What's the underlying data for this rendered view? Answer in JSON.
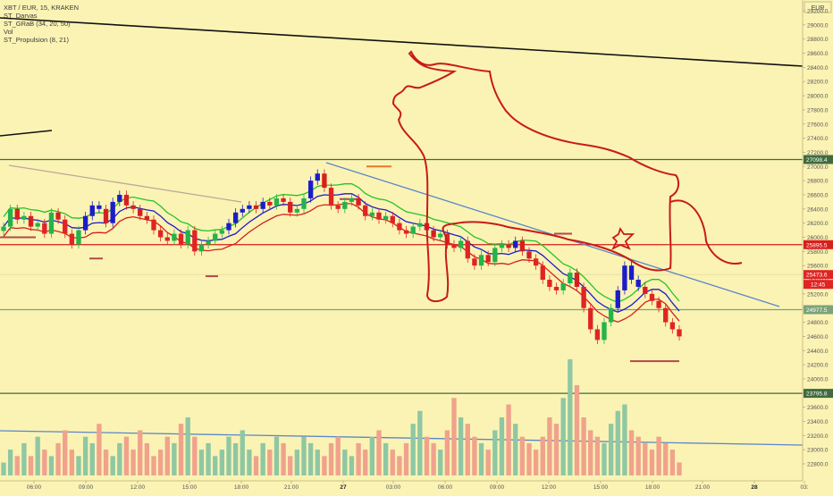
{
  "legend": {
    "title": "XBT / EUR, 15, KRAKEN",
    "ind1": "ST_Darvas",
    "ind2": "ST_GRaB (34, 20, 50)",
    "ind3": "Vol",
    "ind4": "ST_Propulsion (8, 21)"
  },
  "currency": "EUR",
  "chart_data": {
    "type": "candlestick",
    "symbol": "XBT / EUR",
    "interval": "15",
    "exchange": "KRAKEN",
    "y_axis": {
      "ticks": [
        22800,
        23000,
        23200,
        23400,
        23600,
        23800,
        24000,
        24200,
        24400,
        24600,
        24800,
        25000,
        25200,
        25400,
        25600,
        25800,
        26000,
        26200,
        26400,
        26600,
        26800,
        27000,
        27200,
        27400,
        27600,
        27800,
        28000,
        28200,
        28400,
        28600,
        28800,
        29000,
        29200
      ],
      "labels": [
        "22800.0",
        "23000.0",
        "23200.0",
        "23400.0",
        "23600.0",
        "23800.0",
        "24000.0",
        "24200.0",
        "24400.0",
        "24600.0",
        "24800.0",
        "25000.0",
        "25200.0",
        "25400.0",
        "25600.0",
        "25800.0",
        "26000.0",
        "26200.0",
        "26400.0",
        "26600.0",
        "26800.0",
        "27000.0",
        "27200.0",
        "27400.0",
        "27600.0",
        "27800.0",
        "28000.0",
        "28200.0",
        "28400.0",
        "28600.0",
        "28800.0",
        "29000.0",
        "29200.0"
      ],
      "range": [
        22700,
        29400
      ]
    },
    "x_axis": {
      "labels": [
        "06:00",
        "09:00",
        "12:00",
        "15:00",
        "18:00",
        "21:00",
        "27",
        "03:00",
        "06:00",
        "09:00",
        "12:00",
        "15:00",
        "18:00",
        "21:00",
        "28",
        "03:"
      ]
    },
    "price_levels": [
      {
        "value": 27098.4,
        "label": "27098.4",
        "color": "#3f6b3f"
      },
      {
        "value": 25895.5,
        "label": "25895.5",
        "color": "#d91e1e"
      },
      {
        "value": 24977.5,
        "label": "24977.5",
        "color": "#7aa37a"
      },
      {
        "value": 23795.8,
        "label": "23795.8",
        "color": "#3f6b3f"
      }
    ],
    "current_price": {
      "value": 25473.6,
      "label": "25473.6",
      "countdown": "12:45",
      "color": "#e02424"
    },
    "close_series": [
      26150,
      26400,
      26250,
      26300,
      26150,
      26200,
      26050,
      26350,
      26250,
      26050,
      25900,
      26100,
      26300,
      26450,
      26400,
      26200,
      26500,
      26600,
      26450,
      26400,
      26300,
      26250,
      26100,
      26000,
      25950,
      26050,
      25900,
      26100,
      25800,
      25900,
      25950,
      26050,
      26100,
      26200,
      26350,
      26400,
      26450,
      26400,
      26500,
      26450,
      26550,
      26500,
      26350,
      26400,
      26550,
      26800,
      26900,
      26700,
      26450,
      26400,
      26500,
      26550,
      26450,
      26300,
      26350,
      26250,
      26300,
      26200,
      26100,
      26050,
      26150,
      26200,
      26100,
      26000,
      26050,
      25900,
      25850,
      25950,
      25700,
      25600,
      25750,
      25650,
      25850,
      25900,
      25850,
      25950,
      25800,
      25700,
      25600,
      25400,
      25300,
      25250,
      25350,
      25500,
      25300,
      25000,
      24700,
      24550,
      24800,
      25000,
      25250,
      25600,
      25400,
      25300,
      25200,
      25100,
      25000,
      24800,
      24700,
      24600
    ],
    "volume_series": [
      2,
      4,
      3,
      5,
      3,
      6,
      4,
      3,
      5,
      7,
      4,
      3,
      6,
      5,
      8,
      4,
      3,
      5,
      6,
      4,
      7,
      5,
      3,
      4,
      6,
      5,
      8,
      9,
      6,
      4,
      5,
      3,
      4,
      6,
      5,
      7,
      4,
      3,
      5,
      4,
      6,
      5,
      3,
      4,
      6,
      5,
      4,
      3,
      5,
      6,
      4,
      3,
      5,
      4,
      6,
      7,
      5,
      4,
      3,
      5,
      8,
      10,
      6,
      5,
      4,
      7,
      12,
      9,
      8,
      6,
      5,
      4,
      7,
      9,
      11,
      8,
      6,
      5,
      4,
      6,
      9,
      8,
      12,
      18,
      14,
      9,
      7,
      6,
      5,
      8,
      10,
      11,
      7,
      6,
      5,
      4,
      6,
      5,
      4,
      2
    ]
  }
}
